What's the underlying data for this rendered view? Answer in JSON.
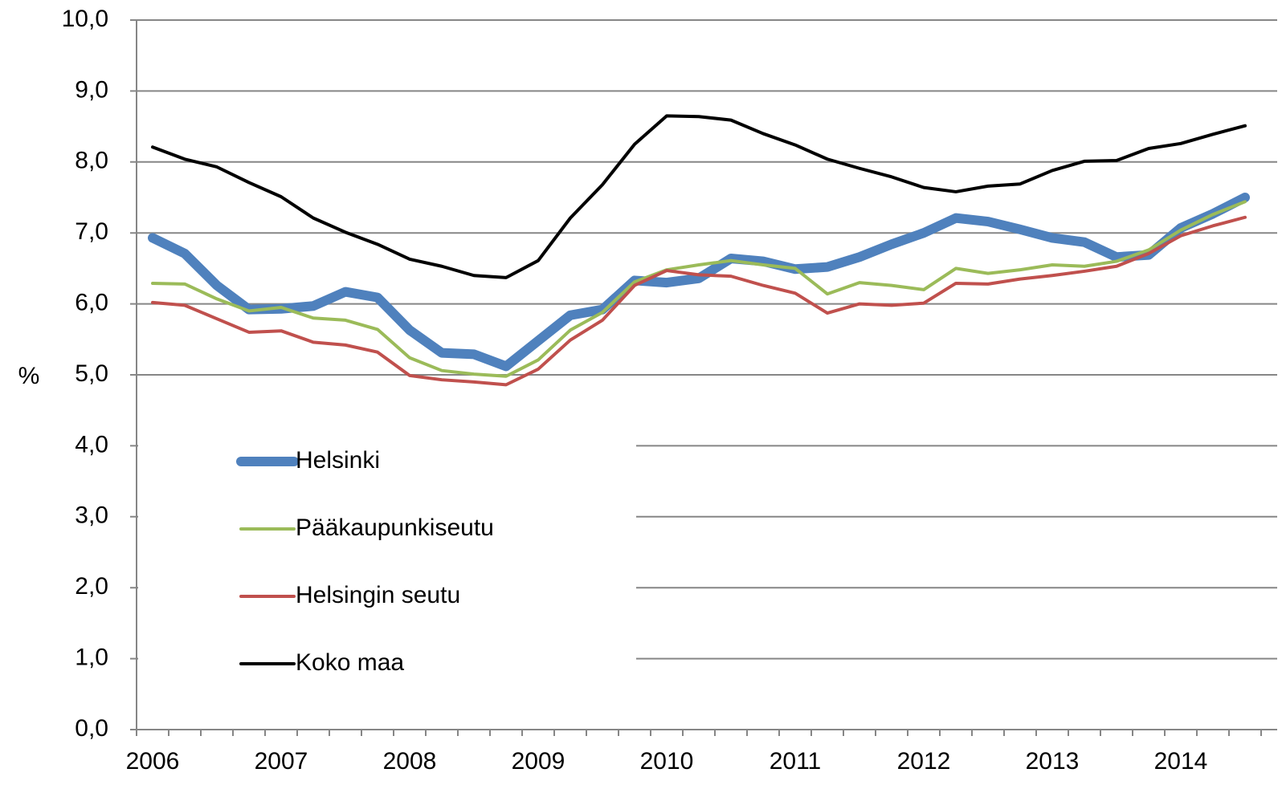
{
  "chart_data": {
    "type": "line",
    "ylabel": "%",
    "categories": [
      "2006",
      null,
      null,
      null,
      "2007",
      null,
      null,
      null,
      "2008",
      null,
      null,
      null,
      "2009",
      null,
      null,
      null,
      "2010",
      null,
      null,
      null,
      "2011",
      null,
      null,
      null,
      "2012",
      null,
      null,
      null,
      "2013",
      null,
      null,
      null,
      "2014",
      null,
      null
    ],
    "ylim": [
      0,
      10
    ],
    "yticks": [
      {
        "value": 0,
        "label": "0,0"
      },
      {
        "value": 1,
        "label": "1,0"
      },
      {
        "value": 2,
        "label": "2,0"
      },
      {
        "value": 3,
        "label": "3,0"
      },
      {
        "value": 4,
        "label": "4,0"
      },
      {
        "value": 5,
        "label": "5,0"
      },
      {
        "value": 6,
        "label": "6,0"
      },
      {
        "value": 7,
        "label": "7,0"
      },
      {
        "value": 8,
        "label": "8,0"
      },
      {
        "value": 9,
        "label": "9,0"
      },
      {
        "value": 10,
        "label": "10,0"
      }
    ],
    "grid": true,
    "legend": "lower-left",
    "series": [
      {
        "name": "Helsinki",
        "color": "#4f81bd",
        "width": 12,
        "values": [
          6.93,
          6.71,
          6.26,
          5.92,
          5.93,
          5.97,
          6.17,
          6.09,
          5.63,
          5.31,
          5.29,
          5.12,
          5.48,
          5.84,
          5.92,
          6.33,
          6.3,
          6.36,
          6.64,
          6.6,
          6.49,
          6.52,
          6.66,
          6.84,
          7.0,
          7.21,
          7.16,
          7.05,
          6.93,
          6.87,
          6.66,
          6.69,
          7.07,
          7.27,
          7.5
        ]
      },
      {
        "name": "Pääkaupunkiseutu",
        "color": "#9bbb59",
        "width": 4,
        "values": [
          6.29,
          6.28,
          6.07,
          5.9,
          5.95,
          5.8,
          5.77,
          5.64,
          5.24,
          5.06,
          5.01,
          4.98,
          5.21,
          5.63,
          5.88,
          6.31,
          6.48,
          6.55,
          6.61,
          6.55,
          6.5,
          6.14,
          6.3,
          6.26,
          6.2,
          6.5,
          6.43,
          6.48,
          6.55,
          6.53,
          6.6,
          6.76,
          7.04,
          7.26,
          7.44
        ]
      },
      {
        "name": "Helsingin seutu",
        "color": "#c0504d",
        "width": 4,
        "values": [
          6.02,
          5.98,
          5.79,
          5.6,
          5.62,
          5.46,
          5.42,
          5.32,
          4.99,
          4.93,
          4.9,
          4.86,
          5.08,
          5.49,
          5.77,
          6.26,
          6.47,
          6.41,
          6.39,
          6.26,
          6.15,
          5.87,
          6.0,
          5.98,
          6.01,
          6.29,
          6.28,
          6.35,
          6.4,
          6.46,
          6.53,
          6.71,
          6.96,
          7.1,
          7.22
        ]
      },
      {
        "name": "Koko maa",
        "color": "#000000",
        "width": 4,
        "values": [
          8.21,
          8.04,
          7.93,
          7.71,
          7.51,
          7.21,
          7.01,
          6.84,
          6.63,
          6.53,
          6.4,
          6.37,
          6.61,
          7.21,
          7.68,
          8.25,
          8.65,
          8.64,
          8.59,
          8.4,
          8.24,
          8.04,
          7.91,
          7.79,
          7.64,
          7.58,
          7.66,
          7.69,
          7.88,
          8.01,
          8.02,
          8.19,
          8.26,
          8.39,
          8.51
        ]
      }
    ]
  }
}
